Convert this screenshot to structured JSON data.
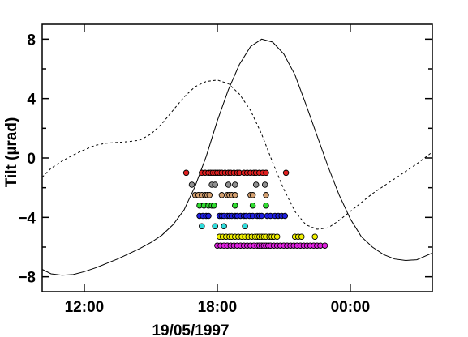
{
  "chart_data": {
    "type": "line",
    "ylabel": "Tilt (µrad)",
    "date_label": "19/05/1997",
    "x_unit": "hours from 00:00 on 19/05/1997",
    "xlim": [
      10.1,
      27.7
    ],
    "ylim": [
      -9,
      9
    ],
    "x_ticks": [
      {
        "value": 12,
        "label": "12:00"
      },
      {
        "value": 18,
        "label": "18:00"
      },
      {
        "value": 24,
        "label": "00:00"
      }
    ],
    "y_ticks": [
      {
        "value": 8,
        "label": "8"
      },
      {
        "value": 4,
        "label": "4"
      },
      {
        "value": 0,
        "label": "0"
      },
      {
        "value": -4,
        "label": "−4"
      },
      {
        "value": -8,
        "label": "−8"
      }
    ],
    "series": [
      {
        "style": "solid",
        "color": "#000000",
        "x": [
          10.1,
          10.5,
          11.0,
          11.5,
          12.0,
          12.5,
          13.0,
          13.5,
          14.0,
          14.5,
          15.0,
          15.5,
          16.0,
          16.5,
          17.0,
          17.5,
          18.0,
          18.5,
          19.0,
          19.5,
          20.0,
          20.5,
          21.0,
          21.5,
          22.0,
          22.5,
          23.0,
          23.5,
          24.0,
          24.5,
          25.0,
          25.5,
          26.0,
          26.5,
          27.0,
          27.7
        ],
        "y": [
          -7.5,
          -7.8,
          -7.9,
          -7.85,
          -7.65,
          -7.4,
          -7.1,
          -6.8,
          -6.45,
          -6.1,
          -5.7,
          -5.2,
          -4.5,
          -3.5,
          -1.9,
          0.1,
          2.5,
          4.6,
          6.3,
          7.5,
          8.0,
          7.8,
          7.0,
          5.6,
          3.6,
          1.5,
          -0.6,
          -2.5,
          -4.1,
          -5.3,
          -6.0,
          -6.5,
          -6.8,
          -6.9,
          -6.85,
          -6.4
        ]
      },
      {
        "style": "dashed",
        "color": "#000000",
        "x": [
          10.1,
          10.5,
          11.0,
          11.5,
          12.0,
          12.5,
          13.0,
          13.5,
          14.0,
          14.5,
          15.0,
          15.5,
          16.0,
          16.5,
          17.0,
          17.5,
          18.0,
          18.5,
          19.0,
          19.5,
          20.0,
          20.5,
          21.0,
          21.5,
          22.0,
          22.5,
          23.0,
          23.5,
          24.0,
          24.5,
          25.0,
          25.5,
          26.0,
          26.5,
          27.0,
          27.7
        ],
        "y": [
          -1.3,
          -0.7,
          -0.2,
          0.2,
          0.55,
          0.85,
          1.0,
          1.05,
          1.1,
          1.2,
          1.6,
          2.3,
          3.2,
          4.1,
          4.8,
          5.15,
          5.25,
          5.0,
          4.3,
          3.2,
          1.6,
          -0.3,
          -2.1,
          -3.6,
          -4.5,
          -4.8,
          -4.7,
          -4.2,
          -3.6,
          -3.0,
          -2.4,
          -1.9,
          -1.4,
          -0.9,
          -0.4,
          0.4
        ]
      }
    ],
    "marker_rows": [
      {
        "y": -1.0,
        "color": "#e02020",
        "x": [
          16.6,
          17.3,
          17.45,
          17.6,
          17.7,
          17.8,
          17.9,
          18.0,
          18.1,
          18.2,
          18.35,
          18.5,
          18.6,
          18.75,
          18.9,
          19.0,
          19.2,
          19.35,
          19.5,
          19.65,
          19.75,
          19.9,
          20.05,
          20.2,
          21.1
        ]
      },
      {
        "y": -1.8,
        "color": "#909090",
        "x": [
          16.85,
          17.75,
          17.9,
          18.5,
          18.8,
          19.75,
          20.15
        ]
      },
      {
        "y": -2.5,
        "color": "#d4a070",
        "x": [
          17.0,
          17.15,
          17.3,
          17.45,
          17.55,
          17.65,
          18.2,
          18.45,
          18.55,
          18.65,
          18.8,
          19.5,
          19.6,
          20.2
        ]
      },
      {
        "y": -3.2,
        "color": "#30dd30",
        "x": [
          17.2,
          17.4,
          17.6,
          17.75,
          17.85,
          18.8,
          19.6,
          20.2
        ]
      },
      {
        "y": -3.9,
        "color": "#2020e0",
        "x": [
          17.2,
          17.35,
          17.5,
          17.6,
          18.1,
          18.2,
          18.3,
          18.45,
          18.55,
          18.65,
          18.8,
          18.9,
          19.05,
          19.2,
          19.3,
          19.45,
          19.6,
          19.8,
          19.9,
          20.0,
          20.25,
          20.4,
          20.6,
          20.75,
          20.9,
          21.05
        ]
      },
      {
        "y": -4.6,
        "color": "#30dddd",
        "x": [
          17.3,
          17.9,
          18.3,
          19.25
        ]
      },
      {
        "y": -5.3,
        "color": "#f0f000",
        "x": [
          18.1,
          18.25,
          18.4,
          18.55,
          18.65,
          18.8,
          18.95,
          19.1,
          19.25,
          19.4,
          19.55,
          19.7,
          19.8,
          19.9,
          20.0,
          20.1,
          20.2,
          20.35,
          20.45,
          20.55,
          20.7,
          21.5,
          21.65,
          21.8,
          22.4
        ]
      },
      {
        "y": -5.9,
        "color": "#e020e0",
        "x": [
          18.0,
          18.15,
          18.3,
          18.45,
          18.6,
          18.75,
          18.9,
          19.05,
          19.2,
          19.35,
          19.5,
          19.65,
          19.8,
          19.9,
          20.0,
          20.1,
          20.2,
          20.3,
          20.4,
          20.55,
          20.7,
          20.85,
          21.0,
          21.15,
          21.3,
          21.45,
          21.6,
          21.75,
          21.9,
          22.05,
          22.2,
          22.35,
          22.5,
          22.65,
          22.85
        ]
      }
    ]
  }
}
